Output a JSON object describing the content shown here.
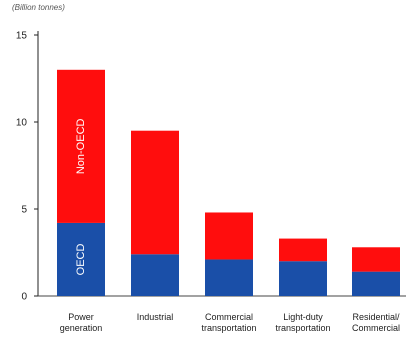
{
  "chart_data": {
    "type": "bar",
    "stacked": true,
    "unit_label": "(Billion tonnes)",
    "categories": [
      [
        "Power",
        "generation"
      ],
      [
        "Industrial"
      ],
      [
        "Commercial",
        "transportation"
      ],
      [
        "Light-duty",
        "transportation"
      ],
      [
        "Residential/",
        "Commercial"
      ]
    ],
    "series": [
      {
        "name": "OECD",
        "color": "#1a4fa8",
        "values": [
          4.2,
          2.4,
          2.1,
          2.0,
          1.4
        ]
      },
      {
        "name": "Non-OECD",
        "color": "#ff0d0d",
        "values": [
          8.8,
          7.1,
          2.7,
          1.3,
          1.4
        ]
      }
    ],
    "ylim": [
      0,
      15
    ],
    "yticks": [
      0,
      5,
      10,
      15
    ],
    "grid": false,
    "legend": "labels inside first bar"
  }
}
